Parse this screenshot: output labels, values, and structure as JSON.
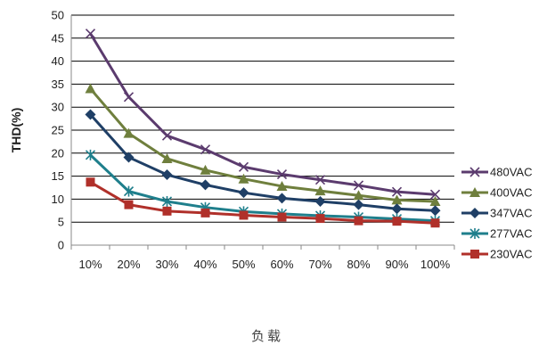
{
  "chart_data": {
    "type": "line",
    "title": "",
    "xlabel": "负载",
    "ylabel": "THD(%)",
    "ylim": [
      0,
      50
    ],
    "yticks": [
      0,
      5,
      10,
      15,
      20,
      25,
      30,
      35,
      40,
      45,
      50
    ],
    "grid": "horizontal",
    "legend_position": "right",
    "categories": [
      "10%",
      "20%",
      "30%",
      "40%",
      "50%",
      "60%",
      "70%",
      "80%",
      "90%",
      "100%"
    ],
    "series": [
      {
        "name": "480VAC",
        "color": "#5b3b6e",
        "marker": "x-icon",
        "values": [
          46,
          32.2,
          23.8,
          20.8,
          17,
          15.4,
          14.2,
          13,
          11.6,
          11
        ]
      },
      {
        "name": "400VAC",
        "color": "#6f7f3d",
        "marker": "triangle-icon",
        "values": [
          34,
          24.3,
          18.8,
          16.3,
          14.4,
          12.8,
          11.8,
          10.8,
          9.8,
          9.5
        ]
      },
      {
        "name": "347VAC",
        "color": "#1f3f66",
        "marker": "diamond-icon",
        "values": [
          28.4,
          19.1,
          15.3,
          13.1,
          11.4,
          10.2,
          9.5,
          8.8,
          7.9,
          7.5
        ]
      },
      {
        "name": "277VAC",
        "color": "#1f7f8c",
        "marker": "asterisk-icon",
        "values": [
          19.6,
          11.7,
          9.5,
          8.2,
          7.3,
          6.8,
          6.4,
          6.1,
          5.7,
          5.3
        ]
      },
      {
        "name": "230VAC",
        "color": "#b0302a",
        "marker": "square-icon",
        "values": [
          13.7,
          8.8,
          7.4,
          7,
          6.5,
          6.1,
          5.8,
          5.3,
          5.2,
          4.8
        ]
      }
    ]
  }
}
